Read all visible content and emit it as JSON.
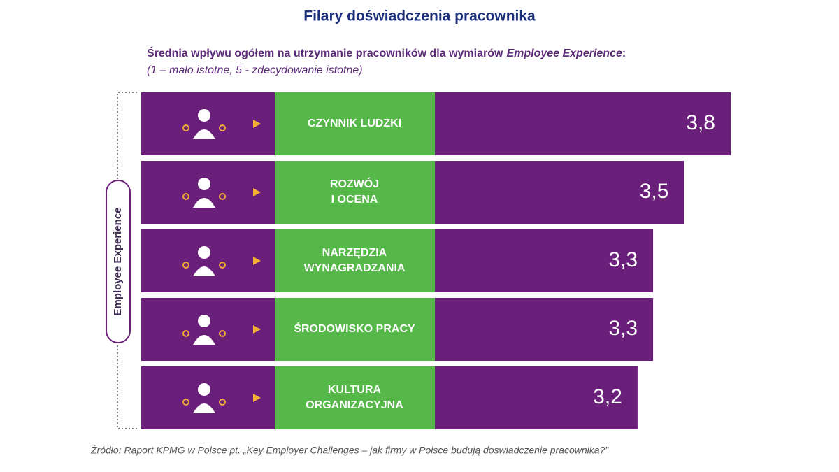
{
  "chart_data": {
    "type": "bar",
    "orientation": "horizontal",
    "title": "Filary doświadczenia pracownika",
    "subtitle": [
      "Średnia wpływu ogółem na utrzymanie pracowników dla wymiarów",
      "Employee Experience",
      ":"
    ],
    "subtitle_note": "(1 – mało istotne, 5 - zdecydowanie istotne)",
    "group_label": "Employee Experience",
    "categories": [
      [
        "CZYNNIK LUDZKI"
      ],
      [
        "ROZWÓJ",
        "I OCENA"
      ],
      [
        "NARZĘDZIA",
        "WYNAGRADZANIA"
      ],
      [
        "ŚRODOWISKO PRACY"
      ],
      [
        "KULTURA",
        "ORGANIZACYJNA"
      ]
    ],
    "values": [
      3.8,
      3.5,
      3.3,
      3.3,
      3.2
    ],
    "value_labels": [
      "3,8",
      "3,5",
      "3,3",
      "3,3",
      "3,2"
    ],
    "color": "#6a1f7a",
    "label_box_color": "#55b848",
    "source": "Źródło: Raport KPMG w Polsce pt. „Key Employer Challenges – jak firmy w Polsce budują doswiadczenie pracownika?”"
  }
}
